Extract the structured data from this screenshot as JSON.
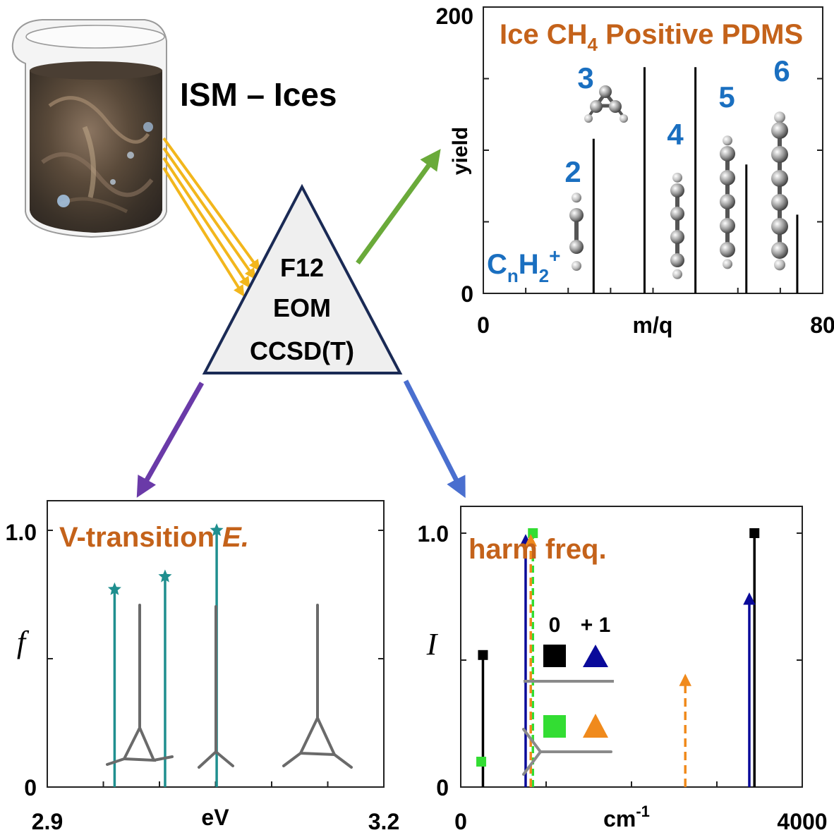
{
  "source": {
    "label": "ISM – Ices"
  },
  "method": {
    "lines": [
      "F12",
      "EOM",
      "CCSD(T)"
    ]
  },
  "panels": {
    "mass_spectrum": {
      "title_prefix": "Ice CH",
      "title_sub": "4",
      "title_suffix": " Positive PDMS",
      "ylabel": "yield",
      "xlabel": "m/q",
      "x_ticks": [
        "0",
        "80"
      ],
      "y_ticks": [
        "0",
        "200"
      ],
      "formula": {
        "c": "C",
        "n": "n",
        "h": "H",
        "two": "2",
        "plus": "+"
      },
      "species_labels": [
        "2",
        "3",
        "4",
        "5",
        "6"
      ]
    },
    "vertical_transition": {
      "title_main": "V-transition ",
      "title_italic": "E.",
      "ylabel": "f",
      "xlabel": "eV",
      "x_ticks": [
        "2.9",
        "3.2"
      ],
      "y_ticks": [
        "0",
        "1.0"
      ]
    },
    "harmonic_frequencies": {
      "title": "harm freq.",
      "ylabel": "I",
      "xlabel": "cm",
      "xlabel_sup": "-1",
      "x_ticks": [
        "0",
        "4000"
      ],
      "y_ticks": [
        "0",
        "1.0"
      ],
      "legend": {
        "col_neutral": "0",
        "col_cation": "+ 1"
      }
    }
  },
  "colors": {
    "label_blue": "#1a6fc0",
    "title_orange": "#c4621a",
    "teal": "#1f8f8f",
    "arrow_green": "#6aaa3a",
    "arrow_purple": "#6a3aa8",
    "arrow_blue": "#4a6fcf",
    "beam_yellow": "#f2b61c",
    "navy": "#0a0a9a",
    "lime": "#33dd33",
    "orange": "#f08a1c"
  },
  "chart_data": [
    {
      "type": "bar",
      "title": "Ice CH4 Positive PDMS",
      "xlabel": "m/q",
      "ylabel": "yield",
      "xlim": [
        0,
        80
      ],
      "ylim": [
        0,
        200
      ],
      "series": [
        {
          "x": [
            26,
            38,
            50,
            62,
            74
          ],
          "values": [
            108,
            158,
            158,
            90,
            55
          ]
        }
      ],
      "annotations": [
        "2",
        "3",
        "4",
        "5",
        "6"
      ]
    },
    {
      "type": "bar",
      "title": "V-transition E.",
      "xlabel": "eV",
      "ylabel": "f",
      "xlim": [
        2.9,
        3.2
      ],
      "ylim": [
        0,
        1.0
      ],
      "series": [
        {
          "x": [
            2.96,
            3.005,
            3.051
          ],
          "values": [
            0.77,
            0.82,
            1.0
          ]
        }
      ]
    },
    {
      "type": "bar",
      "title": "harm freq.",
      "xlabel": "cm-1",
      "ylabel": "I",
      "xlim": [
        0,
        4000
      ],
      "ylim": [
        0,
        1.0
      ],
      "series": [
        {
          "name": "0",
          "x": [
            260,
            3440
          ],
          "values": [
            0.52,
            1.0
          ]
        },
        {
          "name": "+ 1",
          "x": [
            760,
            3380
          ],
          "values": [
            1.0,
            0.77
          ]
        },
        {
          "x": [
            240,
            845
          ],
          "values": [
            0.1,
            1.0
          ]
        },
        {
          "x": [
            820,
            2630
          ],
          "values": [
            1.0,
            0.45
          ]
        }
      ]
    }
  ]
}
